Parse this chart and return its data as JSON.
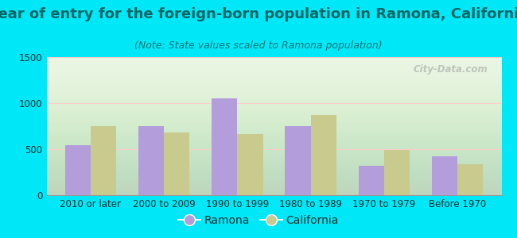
{
  "categories": [
    "2010 or later",
    "2000 to 2009",
    "1990 to 1999",
    "1980 to 1989",
    "1970 to 1979",
    "Before 1970"
  ],
  "ramona": [
    540,
    750,
    1050,
    750,
    320,
    420
  ],
  "california": [
    750,
    680,
    660,
    870,
    490,
    340
  ],
  "ramona_color": "#b39ddb",
  "california_color": "#c8ca8e",
  "title": "Year of entry for the foreign-born population in Ramona, California",
  "subtitle": "(Note: State values scaled to Ramona population)",
  "ylim": [
    0,
    1500
  ],
  "yticks": [
    0,
    500,
    1000,
    1500
  ],
  "bg_outer": "#00e8f8",
  "bg_inner": "#e8f5e0",
  "watermark": "City-Data.com",
  "legend_ramona": "Ramona",
  "legend_california": "California",
  "title_fontsize": 13,
  "subtitle_fontsize": 9,
  "tick_fontsize": 8.5,
  "legend_fontsize": 10,
  "title_color": "#006666",
  "subtitle_color": "#007777",
  "tick_color": "#003333",
  "bar_width": 0.35
}
